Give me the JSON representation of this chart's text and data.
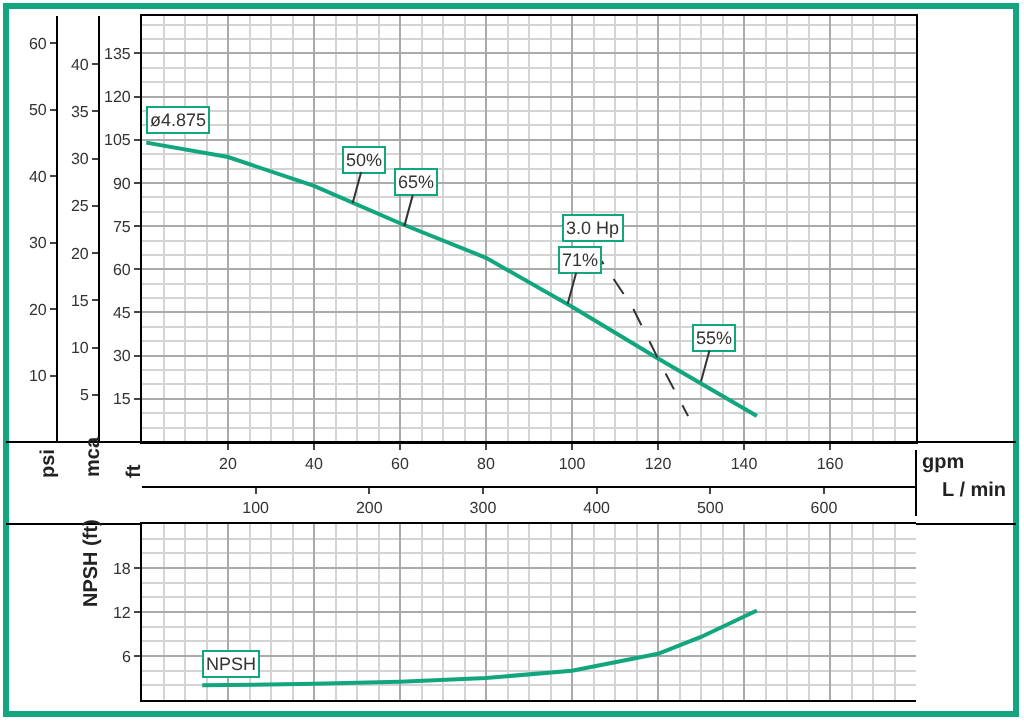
{
  "chart_data": [
    {
      "type": "line",
      "xlabel": "gpm",
      "x2label": "L / min",
      "ylabel": "ft",
      "y2label": "mca",
      "y3label": "psi",
      "xlim": [
        0,
        180
      ],
      "xticks": [
        20,
        40,
        60,
        80,
        100,
        120,
        140,
        160
      ],
      "x2lim": [
        0,
        681
      ],
      "x2ticks": [
        100,
        200,
        300,
        400,
        500,
        600
      ],
      "ylim": [
        0,
        148
      ],
      "yticks": [
        15,
        30,
        45,
        60,
        75,
        90,
        105,
        120,
        135
      ],
      "y2lim": [
        0,
        45.1
      ],
      "y2ticks": [
        5,
        10,
        15,
        20,
        25,
        30,
        35,
        40
      ],
      "y3lim": [
        0,
        64.1
      ],
      "y3ticks": [
        10,
        20,
        30,
        40,
        50,
        60
      ],
      "grid": true,
      "marker": "none",
      "series": [
        {
          "name": "ø4.875",
          "color": "#12a67e",
          "x": [
            1,
            20,
            40,
            60,
            80,
            100,
            120,
            143
          ],
          "values": [
            104,
            99,
            89,
            76,
            64,
            47,
            29,
            9
          ]
        },
        {
          "name": "3.0 Hp",
          "color": "#333333",
          "line_style": "dashed",
          "x": [
            105,
            114,
            121,
            127
          ],
          "values": [
            67,
            47,
            26,
            9
          ]
        }
      ],
      "annotations": [
        {
          "text": "50%",
          "x": 49,
          "y": 83
        },
        {
          "text": "65%",
          "x": 61,
          "y": 75
        },
        {
          "text": "71%",
          "x": 99,
          "y": 48
        },
        {
          "text": "55%",
          "x": 130,
          "y": 21
        }
      ]
    },
    {
      "type": "line",
      "ylabel": "NPSH (ft)",
      "xlim": [
        0,
        180
      ],
      "ylim": [
        0,
        24
      ],
      "yticks": [
        6,
        12,
        18
      ],
      "tick_labels": "y",
      "grid": true,
      "marker": "none",
      "series": [
        {
          "name": "NPSH",
          "color": "#12a67e",
          "x": [
            14,
            40,
            60,
            80,
            100,
            120,
            130,
            143
          ],
          "values": [
            2.0,
            2.2,
            2.5,
            3.0,
            4.0,
            6.3,
            8.6,
            12.2
          ]
        }
      ]
    }
  ]
}
